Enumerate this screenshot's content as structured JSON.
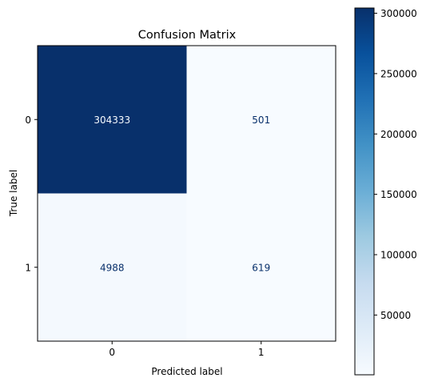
{
  "chart_data": {
    "type": "heatmap",
    "title": "Confusion Matrix",
    "xlabel": "Predicted label",
    "ylabel": "True label",
    "x_tick_labels": [
      "0",
      "1"
    ],
    "y_tick_labels": [
      "0",
      "1"
    ],
    "matrix": [
      [
        304333,
        501
      ],
      [
        4988,
        619
      ]
    ],
    "cell_labels": [
      [
        "304333",
        "501"
      ],
      [
        "4988",
        "619"
      ]
    ],
    "colormap": "Blues",
    "colorbar": {
      "range": [
        501,
        304333
      ],
      "ticks": [
        50000,
        100000,
        150000,
        200000,
        250000,
        300000
      ],
      "tick_labels": [
        "50000",
        "100000",
        "150000",
        "200000",
        "250000",
        "300000"
      ]
    },
    "colors": {
      "max": "#08306b",
      "min": "#f7fbff",
      "text_on_dark": "#f7fbff",
      "text_on_light": "#08306b"
    }
  }
}
